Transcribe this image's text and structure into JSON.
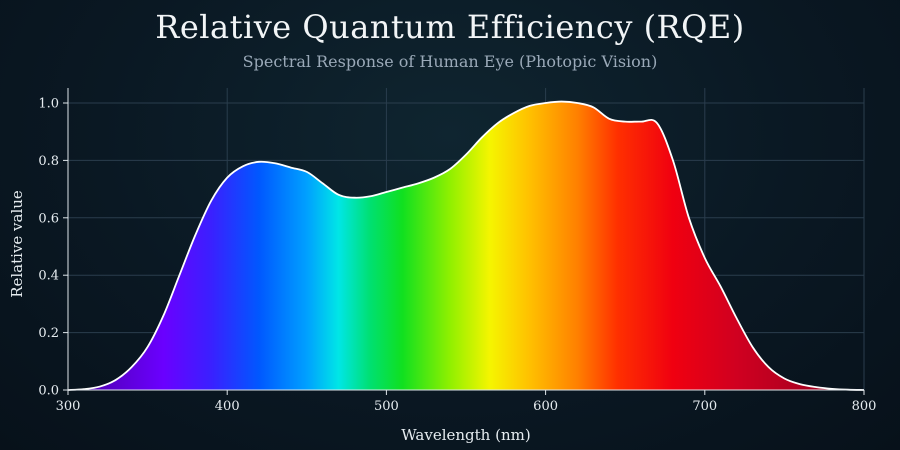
{
  "chart_data": {
    "type": "area",
    "title": "Relative Quantum Efficiency (RQE)",
    "subtitle": "Spectral Response of Human Eye (Photopic Vision)",
    "xlabel": "Wavelength (nm)",
    "ylabel": "Relative value",
    "xlim": [
      300,
      800
    ],
    "ylim": [
      0,
      1.05
    ],
    "xticks": [
      300,
      400,
      500,
      600,
      700,
      800
    ],
    "yticks": [
      0.0,
      0.2,
      0.4,
      0.6,
      0.8,
      1.0
    ],
    "ytick_labels": [
      "0.0",
      "0.2",
      "0.4",
      "0.6",
      "0.8",
      "1.0"
    ],
    "grid": true,
    "fill": "visible-spectrum gradient",
    "line_color": "#ffffff",
    "x": [
      300,
      310,
      320,
      330,
      340,
      350,
      360,
      370,
      380,
      390,
      400,
      410,
      420,
      430,
      440,
      450,
      460,
      470,
      480,
      490,
      500,
      510,
      520,
      530,
      540,
      550,
      560,
      570,
      580,
      590,
      600,
      610,
      620,
      630,
      640,
      650,
      660,
      670,
      680,
      690,
      700,
      710,
      720,
      730,
      740,
      750,
      760,
      770,
      780,
      790,
      800
    ],
    "y": [
      0.0,
      0.003,
      0.012,
      0.035,
      0.08,
      0.15,
      0.26,
      0.4,
      0.54,
      0.66,
      0.74,
      0.78,
      0.795,
      0.79,
      0.775,
      0.76,
      0.72,
      0.68,
      0.67,
      0.675,
      0.69,
      0.705,
      0.72,
      0.74,
      0.77,
      0.82,
      0.88,
      0.93,
      0.965,
      0.99,
      1.0,
      1.005,
      1.0,
      0.985,
      0.945,
      0.935,
      0.935,
      0.93,
      0.8,
      0.6,
      0.46,
      0.36,
      0.25,
      0.15,
      0.08,
      0.04,
      0.02,
      0.01,
      0.004,
      0.001,
      0.0
    ]
  }
}
